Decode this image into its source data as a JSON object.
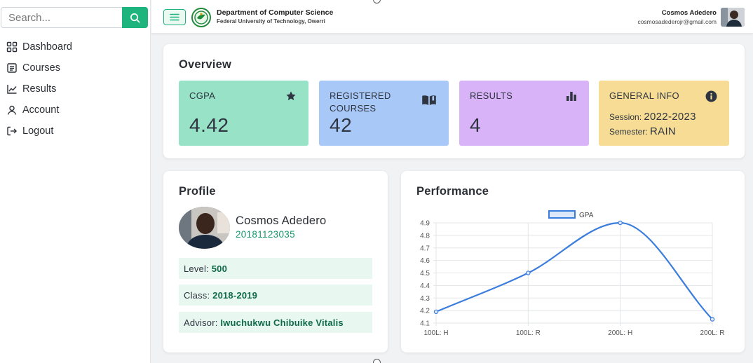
{
  "search": {
    "placeholder": "Search..."
  },
  "sidebar": {
    "items": [
      {
        "label": "Dashboard",
        "icon": "grid-icon"
      },
      {
        "label": "Courses",
        "icon": "list-icon"
      },
      {
        "label": "Results",
        "icon": "chart-line-icon"
      },
      {
        "label": "Account",
        "icon": "user-icon"
      },
      {
        "label": "Logout",
        "icon": "logout-icon"
      }
    ]
  },
  "header": {
    "department": "Department of Computer Science",
    "university": "Federal University of Technology, Owerri",
    "user_name": "Cosmos Adedero",
    "user_email": "cosmosadederojr@gmail.com"
  },
  "overview": {
    "title": "Overview",
    "cgpa": {
      "label": "CGPA",
      "value": "4.42",
      "icon": "star-icon"
    },
    "registered": {
      "label_line1": "REGISTERED",
      "label_line2": "COURSES",
      "value": "42",
      "icon": "book-icon"
    },
    "results": {
      "label": "RESULTS",
      "value": "4",
      "icon": "bar-chart-icon"
    },
    "general": {
      "label": "GENERAL INFO",
      "icon": "info-icon",
      "session_label": "Session:",
      "session_value": "2022-2023",
      "semester_label": "Semester:",
      "semester_value": "RAIN"
    }
  },
  "profile": {
    "title": "Profile",
    "name": "Cosmos Adedero",
    "reg_no": "20181123035",
    "level_label": "Level:",
    "level_value": "500",
    "class_label": "Class:",
    "class_value": "2018-2019",
    "advisor_label": "Advisor:",
    "advisor_value": "Iwuchukwu Chibuike Vitalis"
  },
  "performance": {
    "title": "Performance"
  },
  "colors": {
    "accent": "#1db47e",
    "cgpa_card": "#98e2c7",
    "registered_card": "#a8c8f7",
    "results_card": "#d8b3f7",
    "info_card": "#f6dc94",
    "line": "#3b7ddd"
  },
  "chart_data": {
    "type": "line",
    "categories": [
      "100L: H",
      "100L: R",
      "200L: H",
      "200L: R"
    ],
    "series": [
      {
        "name": "GPA",
        "values": [
          4.19,
          4.5,
          4.9,
          4.13
        ]
      }
    ],
    "ylim": [
      4.1,
      4.9
    ],
    "yticks": [
      4.1,
      4.2,
      4.3,
      4.4,
      4.5,
      4.6,
      4.7,
      4.8,
      4.9
    ],
    "legend": "top",
    "grid": true
  }
}
